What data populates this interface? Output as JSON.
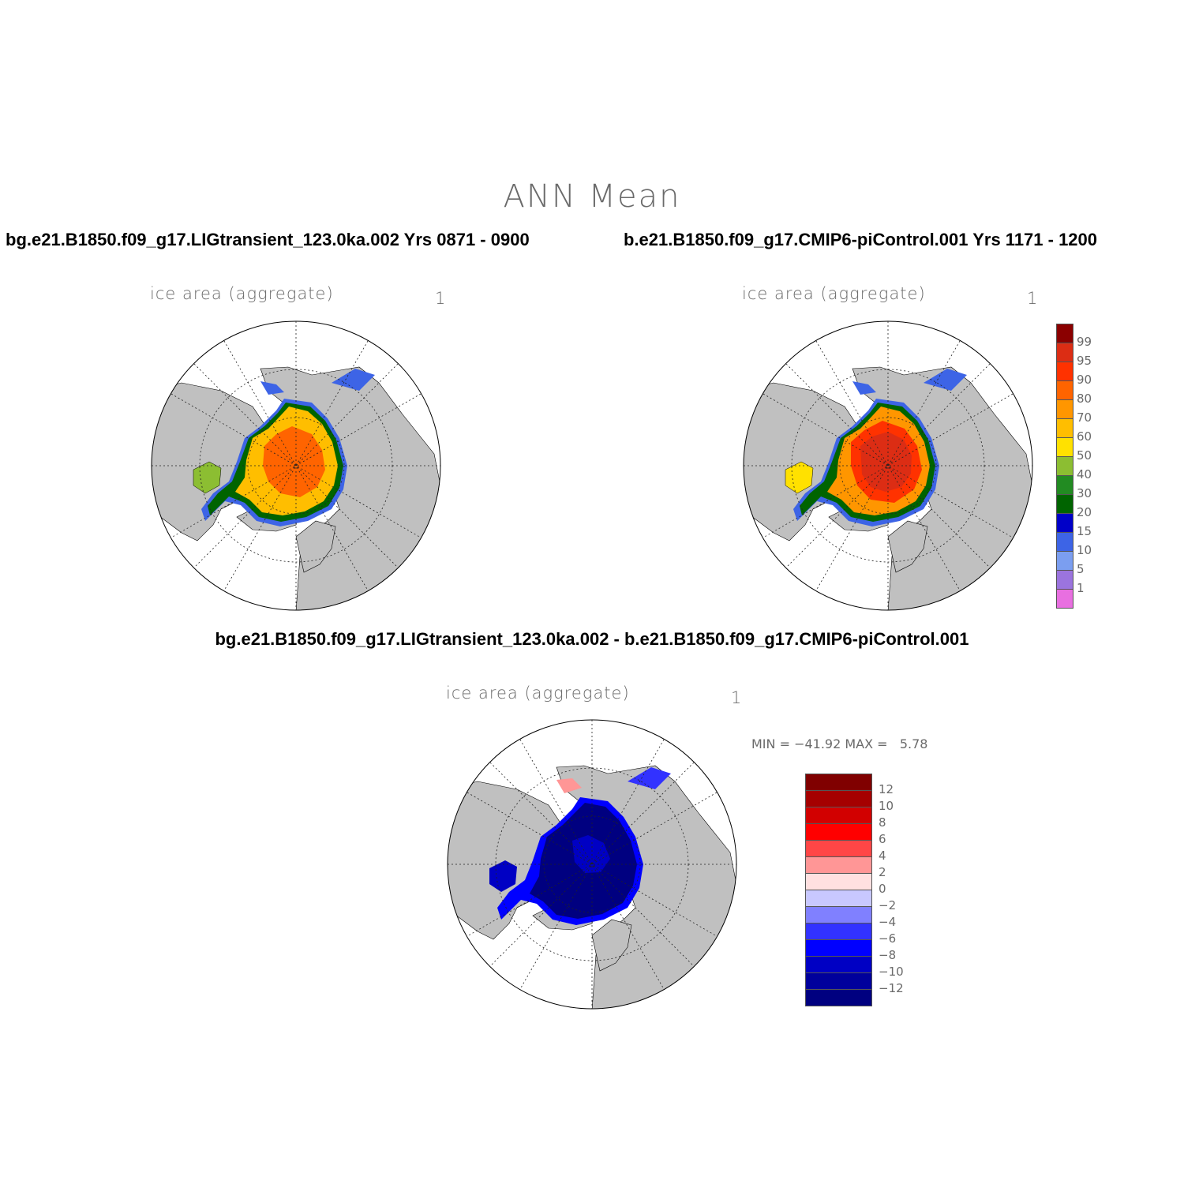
{
  "main_title": "ANN Mean",
  "panels": [
    {
      "title": "bg.e21.B1850.f09_g17.LIGtransient_123.0ka.002  Yrs 0871 - 0900",
      "label": "ice area  (aggregate)",
      "units": "1"
    },
    {
      "title": "b.e21.B1850.f09_g17.CMIP6-piControl.001  Yrs 1171 - 1200",
      "label": "ice area  (aggregate)",
      "units": "1"
    },
    {
      "title": "bg.e21.B1850.f09_g17.LIGtransient_123.0ka.002 - b.e21.B1850.f09_g17.CMIP6-piControl.001",
      "label": "ice area  (aggregate)",
      "units": "1",
      "stats": "MIN = −41.92 MAX =   5.78"
    }
  ],
  "colorbar_abs": {
    "levels": [
      "1",
      "5",
      "10",
      "15",
      "20",
      "30",
      "40",
      "50",
      "60",
      "70",
      "80",
      "90",
      "95",
      "99"
    ],
    "colors": [
      "#e86fe0",
      "#9b74de",
      "#7b9ef0",
      "#3d64e6",
      "#0000c8",
      "#006400",
      "#228b22",
      "#8cbe32",
      "#ffe100",
      "#ffbe00",
      "#ff9600",
      "#ff6400",
      "#ff3200",
      "#dc2d14",
      "#8b0000"
    ]
  },
  "colorbar_diff": {
    "levels": [
      "−12",
      "−10",
      "−8",
      "−6",
      "−4",
      "−2",
      "0",
      "2",
      "4",
      "6",
      "8",
      "10",
      "12"
    ],
    "colors": [
      "#000080",
      "#00009c",
      "#0000c4",
      "#0000ff",
      "#3232ff",
      "#8080ff",
      "#c8c8ff",
      "#ffe0e0",
      "#ff9696",
      "#ff4646",
      "#ff0000",
      "#d20000",
      "#a50000",
      "#800000"
    ]
  },
  "map_colors": {
    "land": "#c0c0c0",
    "ocean": "#ffffff"
  }
}
